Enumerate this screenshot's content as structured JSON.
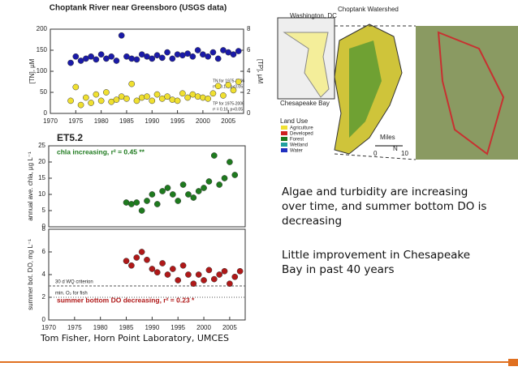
{
  "slide": {
    "text": [
      "Algae and turbidity are increasing over time, and summer bottom DO is decreasing",
      "Little improvement in Chesapeake Bay in past 40 years"
    ],
    "credit": "Tom Fisher, Horn Point Laboratory, UMCES"
  },
  "map": {
    "labels": [
      "Washington, DC",
      "Choptank Watershed",
      "Chesapeake Bay",
      "Land Use",
      "N",
      "Miles",
      "0",
      "10"
    ],
    "land_use": [
      "Agriculture",
      "Developed",
      "Forest",
      "Wetland",
      "Water"
    ]
  },
  "charts": [
    {
      "type": "scatter",
      "title": "Choptank River near Greensboro (USGS data)",
      "ylabel": "[TN], µM",
      "y2label": "[TP], µM",
      "annotations": [
        "TN for 1975-2006",
        "r² = 0.16, p<0.05",
        "TP for 1975-2006",
        "r² = 0.16, p<0.05"
      ],
      "xlim": [
        1970,
        2008
      ],
      "xticks": [
        1970,
        1975,
        1980,
        1985,
        1990,
        1995,
        2000,
        2005
      ],
      "ylim": [
        0,
        200
      ],
      "yticks": [
        0,
        50,
        100,
        150,
        200
      ],
      "y2lim": [
        0,
        8
      ],
      "y2ticks": [
        0,
        2,
        4,
        6,
        8
      ],
      "series": [
        {
          "color": "#1a1aa8",
          "x": [
            1974,
            1975,
            1976,
            1977,
            1978,
            1979,
            1980,
            1981,
            1982,
            1983,
            1984,
            1985,
            1986,
            1987,
            1988,
            1989,
            1990,
            1991,
            1992,
            1993,
            1994,
            1995,
            1996,
            1997,
            1998,
            1999,
            2000,
            2001,
            2002,
            2003,
            2004,
            2005,
            2006,
            2007
          ],
          "values": [
            120,
            135,
            125,
            130,
            135,
            128,
            140,
            130,
            135,
            125,
            185,
            135,
            130,
            128,
            140,
            135,
            130,
            138,
            132,
            145,
            130,
            140,
            138,
            142,
            135,
            150,
            140,
            135,
            145,
            130,
            150,
            145,
            140,
            148
          ]
        },
        {
          "color": "#f0e030",
          "axis": "y2",
          "x": [
            1974,
            1975,
            1976,
            1977,
            1978,
            1979,
            1980,
            1981,
            1982,
            1983,
            1984,
            1985,
            1986,
            1987,
            1988,
            1989,
            1990,
            1991,
            1992,
            1993,
            1994,
            1995,
            1996,
            1997,
            1998,
            1999,
            2000,
            2001,
            2002,
            2003,
            2004,
            2005,
            2006,
            2007
          ],
          "values": [
            1.2,
            2.5,
            0.8,
            1.5,
            1.0,
            1.8,
            1.2,
            2.0,
            1.1,
            1.3,
            1.6,
            1.4,
            2.8,
            1.2,
            1.5,
            1.6,
            1.2,
            1.8,
            1.4,
            1.6,
            1.3,
            1.2,
            1.9,
            1.5,
            1.8,
            1.6,
            1.5,
            1.4,
            1.9,
            2.6,
            1.7,
            2.7,
            2.2,
            3.0
          ]
        }
      ]
    },
    {
      "type": "scatter",
      "title": "ET5.2",
      "ylabel": "annual ave. chla, µg L⁻¹",
      "annotations": [
        "chla increasing, r² = 0.45 **"
      ],
      "xlim": [
        1970,
        2008
      ],
      "ylim": [
        0,
        25
      ],
      "yticks": [
        0,
        5,
        10,
        15,
        20,
        25
      ],
      "series": [
        {
          "color": "#1e7a1e",
          "x": [
            1985,
            1986,
            1987,
            1988,
            1989,
            1990,
            1991,
            1992,
            1993,
            1994,
            1995,
            1996,
            1997,
            1998,
            1999,
            2000,
            2001,
            2002,
            2003,
            2004,
            2005,
            2006
          ],
          "values": [
            7.5,
            7,
            7.5,
            5,
            8,
            10,
            7,
            11,
            12,
            10,
            8,
            13,
            10,
            9,
            11,
            12,
            14,
            22,
            13,
            15,
            20,
            16
          ]
        }
      ]
    },
    {
      "type": "scatter",
      "ylabel": "summer bot. DO, mg L⁻¹",
      "annotations": [
        "30 d WQ criterion",
        "min. O₂ for fish",
        "summer bottom DO decreasing, r² = 0.23 *"
      ],
      "xlim": [
        1970,
        2008
      ],
      "xticks": [
        1970,
        1975,
        1980,
        1985,
        1990,
        1995,
        2000,
        2005
      ],
      "ylim": [
        0,
        8
      ],
      "yticks": [
        0,
        2,
        4,
        6,
        8
      ],
      "series": [
        {
          "color": "#b01818",
          "x": [
            1985,
            1986,
            1987,
            1988,
            1989,
            1990,
            1991,
            1992,
            1993,
            1994,
            1995,
            1996,
            1997,
            1998,
            1999,
            2000,
            2001,
            2002,
            2003,
            2004,
            2005,
            2006,
            2007
          ],
          "values": [
            5.2,
            4.8,
            5.5,
            6,
            5.3,
            4.5,
            4.2,
            5,
            4,
            4.5,
            3.5,
            4.8,
            4,
            3.2,
            4,
            3.5,
            4.4,
            3.6,
            4,
            4.3,
            3.2,
            3.8,
            4.3
          ]
        }
      ]
    }
  ]
}
